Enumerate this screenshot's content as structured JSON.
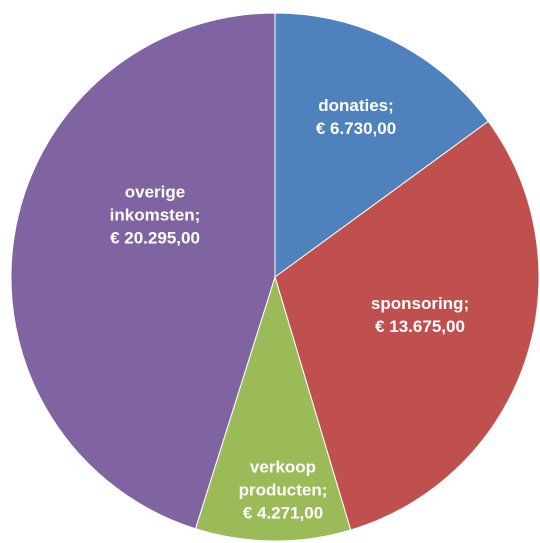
{
  "chart_data": {
    "type": "pie",
    "categories": [
      "donaties;",
      "sponsoring;",
      "verkoop producten;",
      "overige inkomsten;"
    ],
    "values": [
      6730,
      13675,
      4271,
      20295
    ],
    "value_labels": [
      "€ 6.730,00",
      "€ 13.675,00",
      "€ 4.271,00",
      "€ 20.295,00"
    ],
    "colors": [
      "#4f81bd",
      "#c0504d",
      "#9bbb59",
      "#8064a2"
    ]
  }
}
